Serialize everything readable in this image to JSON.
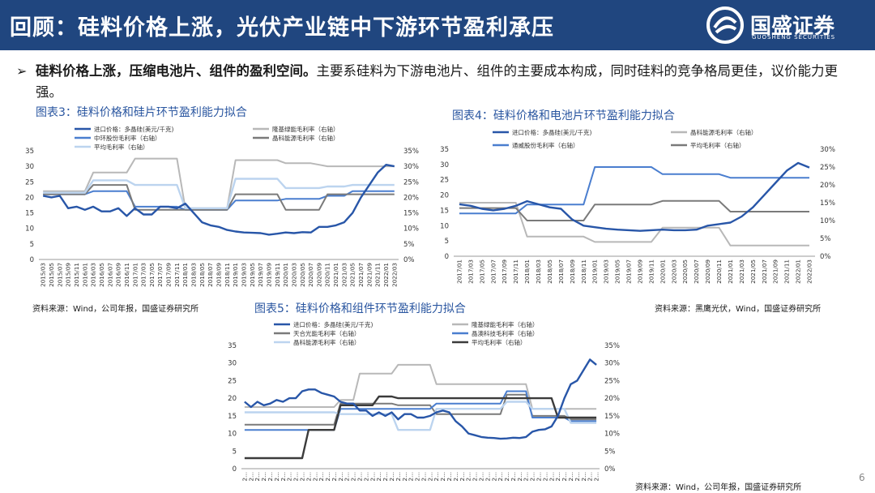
{
  "header": {
    "title": "回顾：硅料价格上涨，光伏产业链中下游环节盈利承压"
  },
  "logo": {
    "name": "国盛证券",
    "sub": "GUOSHENG SECURITIES"
  },
  "bullet": {
    "bold": "硅料价格上涨，压缩电池片、组件的盈利空间。",
    "text": "主要系硅料为下游电池片、组件的主要成本构成，同时硅料的竞争格局更佳，议价能力更强。"
  },
  "page_number": "6",
  "colors": {
    "header_bg": "#20467f",
    "price_line": "#2856a8",
    "title_blue": "#2a56a0"
  },
  "chart_data": [
    {
      "type": "line",
      "title": "图表3：硅料价格和硅片环节盈利能力拟合",
      "source": "资料来源：Wind，公司年报，国盛证券研究所",
      "x": [
        "2015/03",
        "2015/05",
        "2015/07",
        "2015/09",
        "2015/11",
        "2016/01",
        "2016/03",
        "2016/05",
        "2016/07",
        "2016/09",
        "2016/11",
        "2017/01",
        "2017/03",
        "2017/05",
        "2017/07",
        "2017/09",
        "2017/11",
        "2018/01",
        "2018/03",
        "2018/05",
        "2018/07",
        "2018/09",
        "2018/11",
        "2019/01",
        "2019/03",
        "2019/05",
        "2019/07",
        "2019/09",
        "2019/11",
        "2020/01",
        "2020/03",
        "2020/05",
        "2020/07",
        "2020/09",
        "2020/11",
        "2021/01",
        "2021/03",
        "2021/05",
        "2021/07",
        "2021/09",
        "2021/11",
        "2022/01",
        "2022/03"
      ],
      "left_axis": [
        0,
        5,
        10,
        15,
        20,
        25,
        30,
        35
      ],
      "right_axis": [
        "0%",
        "5%",
        "10%",
        "15%",
        "20%",
        "25%",
        "30%",
        "35%"
      ],
      "ylim": [
        0,
        35
      ],
      "right_ylim": [
        0,
        35
      ],
      "series": [
        {
          "name": "进口价格：多晶硅(美元/千克)",
          "axis": "left",
          "color": "#2856a8",
          "width": 2.4,
          "values": [
            20.5,
            20,
            20.5,
            16.5,
            17,
            16,
            17,
            15.5,
            15.5,
            16.5,
            14,
            16.5,
            14.5,
            14.5,
            17,
            17,
            16.5,
            18,
            15,
            12,
            11,
            10.5,
            9.5,
            9,
            8.7,
            8.6,
            8.5,
            8,
            8.3,
            8.7,
            8.5,
            8.8,
            8.7,
            10.5,
            10.5,
            11,
            12,
            15,
            20,
            24,
            28,
            30.5,
            30
          ]
        },
        {
          "name": "隆基绿能毛利率（右轴）",
          "axis": "right",
          "color": "#b8b8b8",
          "width": 2,
          "values": [
            22,
            22,
            22,
            22,
            22,
            22,
            28,
            28,
            28,
            28,
            28,
            32.5,
            32.5,
            32.5,
            32.5,
            32.5,
            32.5,
            16.5,
            16.5,
            16.5,
            16.5,
            16.5,
            16.5,
            32,
            32,
            32,
            32,
            32,
            32,
            31,
            31,
            31,
            31,
            30.5,
            30,
            30,
            30,
            30,
            30,
            30,
            30,
            30,
            30
          ]
        },
        {
          "name": "中环股份毛利率（右轴）",
          "axis": "right",
          "color": "#4a7ecf",
          "width": 2,
          "values": [
            21,
            21,
            21,
            21,
            21,
            21,
            22,
            22,
            22,
            22,
            22,
            17,
            17,
            17,
            17,
            17,
            17,
            16,
            16,
            16,
            16,
            16,
            16,
            19,
            19,
            19,
            19,
            19,
            19,
            19.5,
            19.5,
            19.5,
            19.5,
            19.5,
            20.5,
            20.5,
            20.5,
            22,
            22,
            22,
            22,
            22,
            22
          ]
        },
        {
          "name": "晶科能源毛利率（右轴）",
          "axis": "right",
          "color": "#7a7a7a",
          "width": 2,
          "values": [
            21,
            21,
            21,
            21,
            21,
            21,
            24,
            24,
            24,
            24,
            24,
            16,
            16,
            16,
            16,
            16,
            16,
            16,
            16,
            16,
            16,
            16,
            16,
            21,
            21,
            21,
            21,
            21,
            21,
            16,
            16,
            16,
            16,
            16,
            21,
            21,
            21,
            21,
            21,
            21,
            21,
            21,
            21
          ]
        },
        {
          "name": "平均毛利率（右轴）",
          "axis": "right",
          "color": "#bcd4ef",
          "width": 2.4,
          "values": [
            21.5,
            21.5,
            21.5,
            21.5,
            21.5,
            21.5,
            25.5,
            25.5,
            25.5,
            25.5,
            25.5,
            24,
            24,
            24,
            24,
            24,
            24,
            16.5,
            16.5,
            16.5,
            16.5,
            16.5,
            16.5,
            26,
            26,
            26,
            26,
            26,
            26,
            23,
            23,
            23,
            23,
            23,
            23.5,
            23.5,
            23.5,
            24,
            24,
            24,
            24,
            24,
            24
          ]
        }
      ]
    },
    {
      "type": "line",
      "title": "图表4：硅料价格和电池片环节盈利能力拟合",
      "source": "资料来源：黑鹰光伏，Wind，国盛证券研究所",
      "x": [
        "2017/01",
        "2017/03",
        "2017/05",
        "2017/07",
        "2017/09",
        "2017/11",
        "2018/01",
        "2018/03",
        "2018/05",
        "2018/07",
        "2018/09",
        "2018/11",
        "2019/01",
        "2019/03",
        "2019/05",
        "2019/07",
        "2019/09",
        "2019/11",
        "2020/01",
        "2020/03",
        "2020/05",
        "2020/07",
        "2020/09",
        "2020/11",
        "2021/01",
        "2021/03",
        "2021/05",
        "2021/07",
        "2021/09",
        "2021/11",
        "2022/01",
        "2022/03"
      ],
      "left_axis": [
        0,
        5,
        10,
        15,
        20,
        25,
        30,
        35
      ],
      "right_axis": [
        "0%",
        "5%",
        "10%",
        "15%",
        "20%",
        "25%",
        "30%"
      ],
      "ylim": [
        0,
        35
      ],
      "right_ylim": [
        0,
        30
      ],
      "series": [
        {
          "name": "进口价格：多晶硅(美元/千克)",
          "axis": "left",
          "color": "#2856a8",
          "width": 2.4,
          "values": [
            17,
            16.5,
            15.5,
            15,
            15.5,
            16.5,
            18,
            17,
            16,
            15.5,
            12,
            10,
            9.5,
            9,
            8.7,
            8.5,
            8.3,
            8.5,
            8.7,
            8.5,
            8.5,
            8.7,
            10,
            10.5,
            11,
            13,
            16,
            20,
            24,
            28,
            30.5,
            29
          ]
        },
        {
          "name": "晶科能源毛利率（右轴）",
          "axis": "right",
          "color": "#b8b8b8",
          "width": 2,
          "values": [
            15,
            15,
            15,
            15,
            15,
            15,
            5.5,
            5.5,
            5.5,
            5.5,
            5.5,
            5.5,
            4,
            4,
            4,
            4,
            4,
            4,
            8,
            8,
            8,
            8,
            8,
            8,
            3,
            3,
            3,
            3,
            3,
            3,
            3,
            3
          ]
        },
        {
          "name": "通威股份毛利率（右轴）",
          "axis": "right",
          "color": "#4a7ecf",
          "width": 2,
          "values": [
            12,
            12,
            12,
            12,
            12,
            12,
            14.5,
            14.5,
            14.5,
            14.5,
            14.5,
            14.5,
            25,
            25,
            25,
            25,
            25,
            25,
            23,
            23,
            23,
            23,
            23,
            23,
            22,
            22,
            22,
            22,
            22,
            22,
            22,
            22
          ]
        },
        {
          "name": "平均毛利率（右轴）",
          "axis": "right",
          "color": "#7a7a7a",
          "width": 2,
          "values": [
            13.5,
            13.5,
            13.5,
            13.5,
            13.5,
            13.5,
            10,
            10,
            10,
            10,
            10,
            10,
            14.5,
            14.5,
            14.5,
            14.5,
            14.5,
            14.5,
            15.5,
            15.5,
            15.5,
            15.5,
            15.5,
            15.5,
            12.5,
            12.5,
            12.5,
            12.5,
            12.5,
            12.5,
            12.5,
            12.5
          ]
        }
      ]
    },
    {
      "type": "line",
      "title": "图表5：硅料价格和组件环节盈利能力拟合",
      "source": "资料来源：Wind，公司年报，国盛证券研究所",
      "x": [
        "2...",
        "2...",
        "2...",
        "2...",
        "2...",
        "2...",
        "2...",
        "2...",
        "2...",
        "2...",
        "2...",
        "2...",
        "2...",
        "2...",
        "2...",
        "2...",
        "2...",
        "2...",
        "2...",
        "2...",
        "2...",
        "2...",
        "2...",
        "2...",
        "2...",
        "2...",
        "2...",
        "2...",
        "2...",
        "2...",
        "2...",
        "2...",
        "2...",
        "2...",
        "2...",
        "2...",
        "2...",
        "2...",
        "2...",
        "2...",
        "2...",
        "2...",
        "2...",
        "2...",
        "2...",
        "2...",
        "2...",
        "2...",
        "2...",
        "2...",
        "2...",
        "2...",
        "2...",
        "2...",
        "2...",
        "2..."
      ],
      "left_axis": [
        0,
        5,
        10,
        15,
        20,
        25,
        30,
        35
      ],
      "right_axis": [
        "0%",
        "5%",
        "10%",
        "15%",
        "20%",
        "25%",
        "30%",
        "35%"
      ],
      "ylim": [
        0,
        35
      ],
      "right_ylim": [
        0,
        35
      ],
      "series": [
        {
          "name": "进口价格：多晶硅(美元/千克)",
          "axis": "left",
          "color": "#2856a8",
          "width": 2.4,
          "values": [
            19,
            17.5,
            19,
            18,
            18.5,
            19.5,
            19,
            20,
            20,
            22,
            22.5,
            22.5,
            21.5,
            21,
            20.5,
            19,
            18.5,
            18.5,
            16.5,
            16.5,
            15,
            16,
            15,
            16,
            14,
            15.5,
            15.5,
            14.5,
            14.5,
            15,
            16,
            16.5,
            16,
            13.5,
            12,
            10,
            9.5,
            9,
            8.8,
            8.7,
            8.5,
            8.6,
            8.8,
            8.7,
            9,
            10.5,
            11,
            11.2,
            12,
            15,
            20,
            24,
            25,
            28,
            31,
            29.5
          ]
        },
        {
          "name": "隆基绿能毛利率（右轴）",
          "axis": "right",
          "color": "#b8b8b8",
          "width": 2,
          "values": [
            17.5,
            17.5,
            17.5,
            17.5,
            17.5,
            17.5,
            17.5,
            17.5,
            17.5,
            17.5,
            17.5,
            17.5,
            17.5,
            17.5,
            17.5,
            19.5,
            19.5,
            19.5,
            27,
            27,
            27,
            27,
            27,
            27,
            29.5,
            29.5,
            29.5,
            29.5,
            29.5,
            29.5,
            24,
            24,
            24,
            24,
            24,
            24,
            24,
            24,
            24,
            24,
            24,
            24,
            24,
            24,
            24,
            17,
            17,
            17,
            17,
            17,
            17,
            17,
            17,
            17,
            17,
            17
          ]
        },
        {
          "name": "天合光能毛利率（右轴）",
          "axis": "right",
          "color": "#7a7a7a",
          "width": 2,
          "values": [
            12.5,
            12.5,
            12.5,
            12.5,
            12.5,
            12.5,
            12.5,
            12.5,
            12.5,
            12.5,
            12.5,
            12.5,
            12.5,
            12.5,
            12.5,
            18.5,
            18.5,
            18.5,
            18.5,
            18.5,
            18.5,
            18.5,
            18.5,
            18.5,
            18,
            18,
            18,
            18,
            18,
            18,
            15.5,
            15.5,
            15.5,
            15.5,
            15.5,
            15.5,
            15.5,
            15.5,
            15.5,
            15.5,
            15.5,
            21,
            21,
            21,
            21,
            15,
            15,
            15,
            15,
            15,
            15,
            14,
            14,
            14,
            14,
            14
          ]
        },
        {
          "name": "晶澳科技毛利率（右轴）",
          "axis": "right",
          "color": "#4a7ecf",
          "width": 2,
          "values": [
            11,
            11,
            11,
            11,
            11,
            11,
            11,
            11,
            11,
            11,
            11,
            11,
            11,
            11,
            11,
            17,
            17,
            17,
            17,
            17,
            17,
            17,
            17,
            17,
            17,
            17,
            17,
            17,
            17,
            17,
            18.5,
            18.5,
            18.5,
            18.5,
            18.5,
            18.5,
            18.5,
            18.5,
            18.5,
            18.5,
            18.5,
            22,
            22,
            22,
            22,
            14.5,
            14.5,
            14.5,
            14.5,
            14.5,
            14.5,
            13.5,
            13.5,
            13.5,
            13.5,
            13.5
          ]
        },
        {
          "name": "晶科能源毛利率（右轴）",
          "axis": "right",
          "color": "#bcd4ef",
          "width": 2.4,
          "values": [
            16,
            16,
            16,
            16,
            16,
            16,
            16,
            16,
            16,
            16,
            16,
            16,
            16,
            16,
            16,
            15.5,
            15.5,
            15.5,
            15.5,
            15.5,
            15.5,
            15.5,
            15.5,
            15.5,
            11,
            11,
            11,
            11,
            11,
            11,
            17,
            17,
            17,
            17,
            17,
            17,
            17,
            17,
            17,
            17,
            17,
            19,
            19,
            19,
            19,
            17,
            17,
            17,
            17,
            17,
            17,
            13,
            13,
            13,
            13,
            13
          ]
        },
        {
          "name": "平均毛利率（右轴）",
          "axis": "right",
          "color": "#3b3b3b",
          "width": 2.4,
          "values": [
            3,
            3,
            3,
            3,
            3,
            3,
            3,
            3,
            3,
            3,
            11,
            11,
            11,
            11,
            11,
            18,
            18,
            18,
            18,
            18,
            18,
            20.5,
            20.5,
            20.5,
            20,
            20,
            20,
            20,
            20,
            20,
            20,
            20,
            20,
            20,
            20,
            20,
            20,
            20,
            20,
            20,
            20,
            20,
            20,
            20,
            20,
            20,
            20,
            20,
            20,
            14.5,
            14.5,
            14.5,
            14.5,
            14.5,
            14.5,
            14.5
          ]
        }
      ]
    }
  ]
}
